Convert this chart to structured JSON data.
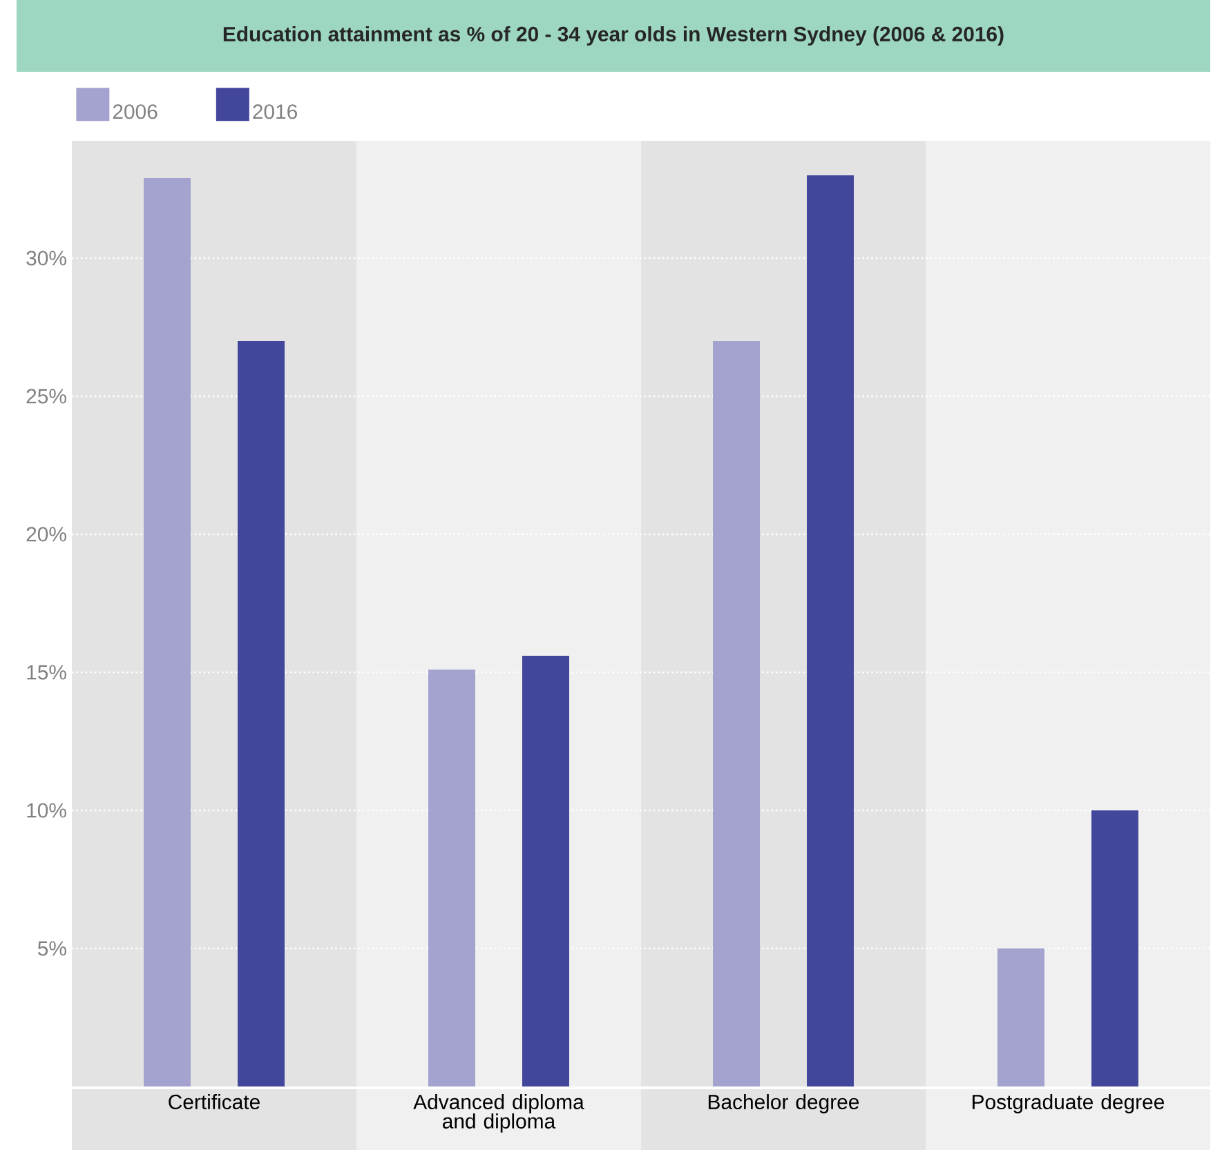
{
  "chart_data": {
    "type": "bar",
    "title": "Education attainment as % of 20 - 34 year olds in Western Sydney (2006 & 2016)",
    "categories": [
      "Certificate",
      "Advanced diploma and diploma",
      "Bachelor degree",
      "Postgraduate degree"
    ],
    "series": [
      {
        "name": "2006",
        "color": "#a4a2cf",
        "values": [
          32.9,
          15.1,
          27.0,
          5.0
        ]
      },
      {
        "name": "2016",
        "color": "#43479b",
        "values": [
          27.0,
          15.6,
          33.0,
          10.0
        ]
      }
    ],
    "ylim": [
      0,
      34.25
    ],
    "yticks": [
      {
        "value": 5,
        "label": "5%"
      },
      {
        "value": 10,
        "label": "10%"
      },
      {
        "value": 15,
        "label": "15%"
      },
      {
        "value": 20,
        "label": "20%"
      },
      {
        "value": 25,
        "label": "25%"
      },
      {
        "value": 30,
        "label": "30%"
      }
    ],
    "grid": "y",
    "legend": "top left"
  }
}
